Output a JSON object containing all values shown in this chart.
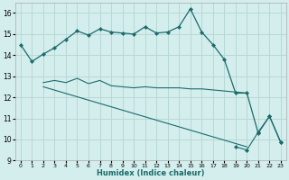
{
  "xlabel": "Humidex (Indice chaleur)",
  "ylabel": "",
  "bg_color": "#d4eeed",
  "grid_color": "#b8d8d5",
  "line_color": "#1a6b6b",
  "xlim": [
    -0.5,
    23.5
  ],
  "ylim": [
    9,
    16.5
  ],
  "yticks": [
    9,
    10,
    11,
    12,
    13,
    14,
    15,
    16
  ],
  "xticks": [
    0,
    1,
    2,
    3,
    4,
    5,
    6,
    7,
    8,
    9,
    10,
    11,
    12,
    13,
    14,
    15,
    16,
    17,
    18,
    19,
    20,
    21,
    22,
    23
  ],
  "curve1_x": [
    0,
    1,
    2,
    3,
    4,
    5,
    6,
    7,
    8,
    9,
    10,
    11,
    12,
    13,
    14,
    15,
    16,
    17,
    18,
    19,
    20,
    21,
    22,
    23
  ],
  "curve1_y": [
    14.5,
    13.7,
    14.05,
    14.35,
    14.75,
    15.15,
    14.95,
    15.25,
    15.1,
    15.05,
    15.0,
    15.35,
    15.05,
    15.1,
    15.35,
    16.2,
    15.1,
    14.5,
    13.8,
    12.2,
    12.2,
    10.3,
    11.1,
    9.85
  ],
  "curve2_x": [
    2,
    3,
    4,
    5,
    6,
    7,
    8,
    9,
    10,
    11,
    12,
    13,
    14,
    15,
    16,
    17,
    18,
    19,
    20
  ],
  "curve2_y": [
    12.7,
    12.8,
    12.7,
    12.9,
    12.65,
    12.8,
    12.55,
    12.5,
    12.45,
    12.5,
    12.45,
    12.45,
    12.45,
    12.4,
    12.4,
    12.35,
    12.3,
    12.25,
    12.2
  ],
  "curve3_x": [
    2,
    20
  ],
  "curve3_y": [
    12.5,
    9.65
  ],
  "curve4_x": [
    19,
    20,
    21,
    22,
    23
  ],
  "curve4_y": [
    9.65,
    9.5,
    10.35,
    11.1,
    9.85
  ]
}
